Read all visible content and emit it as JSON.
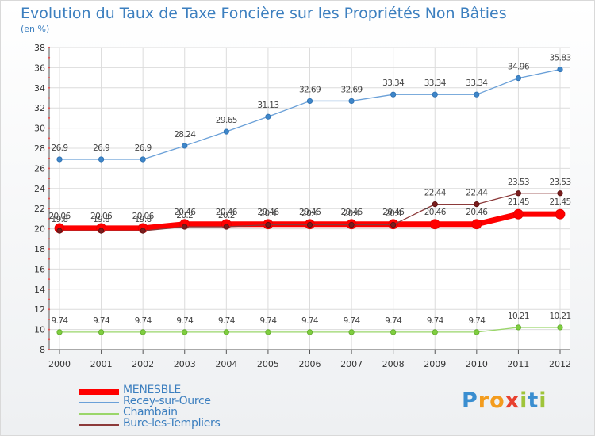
{
  "title": "Evolution du Taux de Taxe Foncière sur les Propriétés Non Bâties",
  "unit_label": "(en %)",
  "logo": {
    "letters": [
      "P",
      "r",
      "o",
      "x",
      "i",
      "t",
      "i"
    ],
    "colors": [
      "#3a8ed0",
      "#f39c1e",
      "#f39c1e",
      "#e8412f",
      "#9fc43a",
      "#3a8ed0",
      "#9fc43a"
    ]
  },
  "chart_data": {
    "type": "line",
    "title": "Evolution du Taux de Taxe Foncière sur les Propriétés Non Bâties",
    "ylabel": "(en %)",
    "xlabel": "",
    "x": [
      "2000",
      "2001",
      "2002",
      "2003",
      "2004",
      "2005",
      "2006",
      "2007",
      "2008",
      "2009",
      "2010",
      "2011",
      "2012"
    ],
    "ylim": [
      8,
      38
    ],
    "yticks": [
      "8",
      "10",
      "12",
      "14",
      "16",
      "18",
      "20",
      "22",
      "24",
      "26",
      "28",
      "30",
      "32",
      "34",
      "36",
      "38"
    ],
    "grid": true,
    "legend_position": "bottom-left",
    "series": [
      {
        "name": "MENESBLE",
        "color": "#ff0000",
        "values": [
          20.06,
          20.06,
          20.06,
          20.46,
          20.46,
          20.46,
          20.46,
          20.46,
          20.46,
          20.46,
          20.46,
          21.45,
          21.45
        ],
        "labels": [
          "20.06",
          "20.06",
          "20.06",
          "20.46",
          "20.46",
          "20.46",
          "20.46",
          "20.46",
          "20.46",
          "20.46",
          "20.46",
          "21.45",
          "21.45"
        ]
      },
      {
        "name": "Recey-sur-Ource",
        "color": "#6aa0d8",
        "values": [
          26.9,
          26.9,
          26.9,
          28.24,
          29.65,
          31.13,
          32.69,
          32.69,
          33.34,
          33.34,
          33.34,
          34.96,
          35.83
        ],
        "labels": [
          "26.9",
          "26.9",
          "26.9",
          "28.24",
          "29.65",
          "31.13",
          "32.69",
          "32.69",
          "33.34",
          "33.34",
          "33.34",
          "34.96",
          "35.83"
        ]
      },
      {
        "name": "Chambain",
        "color": "#9ad66a",
        "values": [
          9.74,
          9.74,
          9.74,
          9.74,
          9.74,
          9.74,
          9.74,
          9.74,
          9.74,
          9.74,
          9.74,
          10.21,
          10.21
        ],
        "labels": [
          "9.74",
          "9.74",
          "9.74",
          "9.74",
          "9.74",
          "9.74",
          "9.74",
          "9.74",
          "9.74",
          "9.74",
          "9.74",
          "10.21",
          "10.21"
        ]
      },
      {
        "name": "Bure-les-Templiers",
        "color": "#8c3a3a",
        "values": [
          19.8,
          19.8,
          19.8,
          20.2,
          20.2,
          20.4,
          20.4,
          20.4,
          20.4,
          22.44,
          22.44,
          23.53,
          23.53
        ],
        "labels": [
          "19.8",
          "19.8",
          "19.8",
          "20.2",
          "20.2",
          "20.4",
          "20.4",
          "20.4",
          "20.4",
          "22.44",
          "22.44",
          "23.53",
          "23.53"
        ]
      }
    ]
  }
}
